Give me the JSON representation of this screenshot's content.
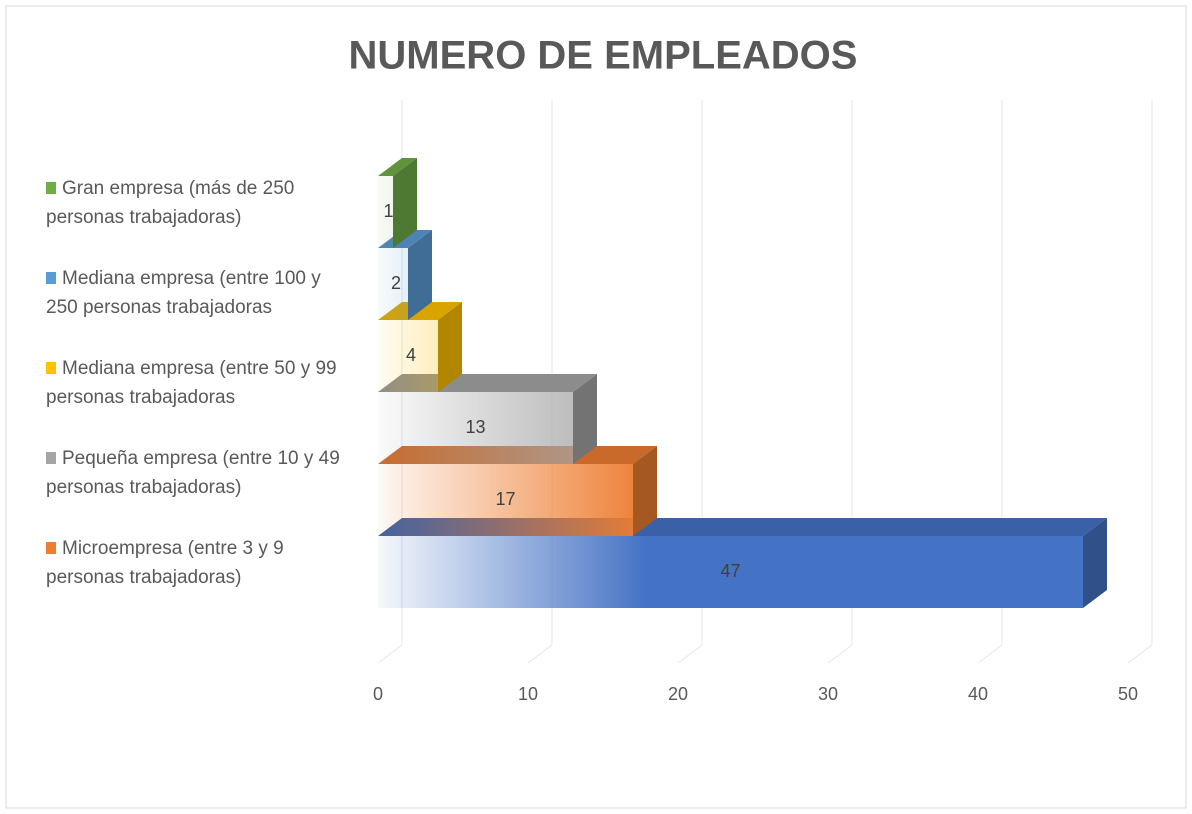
{
  "chart_data": {
    "type": "bar3d",
    "orientation": "horizontal",
    "title": "NUMERO DE EMPLEADOS",
    "categories": [
      null,
      "Microempresa (entre 3 y 9 personas trabajadoras)",
      "Pequeña empresa (entre 10 y 49 personas trabajadoras)",
      "Mediana empresa (entre 50 y 99 personas trabajadoras",
      "Mediana empresa (entre 100 y 250 personas trabajadoras",
      "Gran empresa (más de 250 personas trabajadoras)"
    ],
    "values": [
      47,
      17,
      13,
      4,
      2,
      1
    ],
    "colors": [
      "#4472c4",
      "#ed7d31",
      "#a5a5a5",
      "#ffc000",
      "#5b9bd5",
      "#70ad47"
    ],
    "xlim": [
      0,
      50
    ],
    "xticks": [
      0,
      10,
      20,
      30,
      40,
      50
    ],
    "grid": true,
    "legend": "left"
  }
}
